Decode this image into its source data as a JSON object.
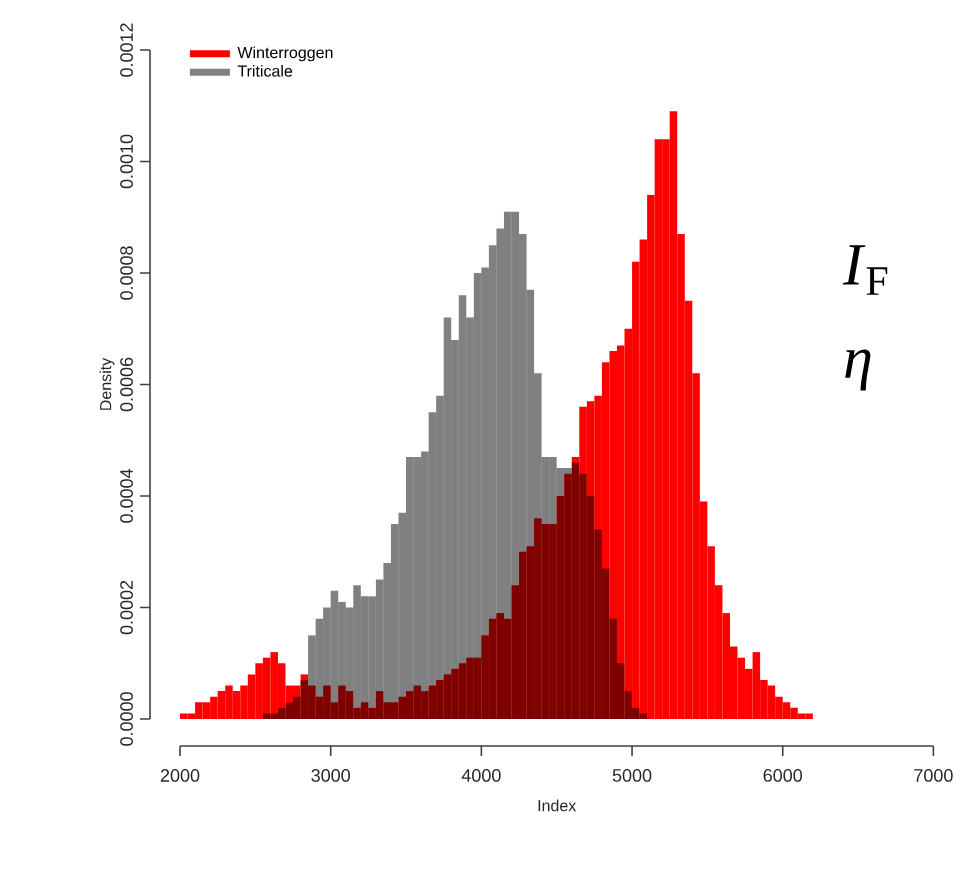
{
  "chart_data": {
    "type": "histogram",
    "xlabel": "Index",
    "ylabel": "Density",
    "bins": [
      2000,
      2050,
      2100,
      2150,
      2200,
      2250,
      2300,
      2350,
      2400,
      2450,
      2500,
      2550,
      2600,
      2650,
      2700,
      2750,
      2800,
      2850,
      2900,
      2950,
      3000,
      3050,
      3100,
      3150,
      3200,
      3250,
      3300,
      3350,
      3400,
      3450,
      3500,
      3550,
      3600,
      3650,
      3700,
      3750,
      3800,
      3850,
      3900,
      3950,
      4000,
      4050,
      4100,
      4150,
      4200,
      4250,
      4300,
      4350,
      4400,
      4450,
      4500,
      4550,
      4600,
      4650,
      4700,
      4750,
      4800,
      4850,
      4900,
      4950,
      5000,
      5050,
      5100,
      5150,
      5200,
      5250,
      5300,
      5350,
      5400,
      5450,
      5500,
      5550,
      5600,
      5650,
      5700,
      5750,
      5800,
      5850,
      5900,
      5950,
      6000,
      6050,
      6100,
      6150,
      6200
    ],
    "series": [
      {
        "name": "Winterroggen",
        "color": "#ff0000",
        "values": [
          1e-05,
          1e-05,
          3e-05,
          3e-05,
          4e-05,
          5e-05,
          6e-05,
          5e-05,
          6e-05,
          8e-05,
          0.0001,
          0.00011,
          0.00012,
          0.0001,
          6e-05,
          6e-05,
          8e-05,
          6e-05,
          4e-05,
          6e-05,
          3e-05,
          6e-05,
          5e-05,
          2e-05,
          3e-05,
          2e-05,
          5e-05,
          3e-05,
          3e-05,
          4e-05,
          5e-05,
          6e-05,
          5e-05,
          6e-05,
          7e-05,
          8e-05,
          9e-05,
          0.0001,
          0.00011,
          0.00011,
          0.00015,
          0.00018,
          0.00019,
          0.00018,
          0.00024,
          0.0003,
          0.00031,
          0.00036,
          0.00035,
          0.00035,
          0.0004,
          0.00044,
          0.00047,
          0.00056,
          0.00057,
          0.00058,
          0.00064,
          0.00066,
          0.00067,
          0.0007,
          0.00082,
          0.00086,
          0.00094,
          0.00104,
          0.00104,
          0.00109,
          0.00087,
          0.00075,
          0.00062,
          0.00039,
          0.00031,
          0.00024,
          0.00019,
          0.00013,
          0.00011,
          9e-05,
          0.00012,
          7e-05,
          6e-05,
          4e-05,
          3e-05,
          2e-05,
          1e-05,
          1e-05
        ]
      },
      {
        "name": "Triticale",
        "color": "#808080",
        "values": [
          0,
          0,
          0,
          0,
          0,
          0,
          0,
          0,
          0,
          0,
          0,
          1e-05,
          1e-05,
          2e-05,
          3e-05,
          4e-05,
          7e-05,
          0.00015,
          0.00018,
          0.0002,
          0.00023,
          0.00021,
          0.0002,
          0.00024,
          0.00022,
          0.00022,
          0.00025,
          0.00028,
          0.00035,
          0.00037,
          0.00047,
          0.00047,
          0.00048,
          0.00055,
          0.00058,
          0.00072,
          0.00068,
          0.00076,
          0.00072,
          0.0008,
          0.00081,
          0.00085,
          0.00088,
          0.00091,
          0.00091,
          0.00087,
          0.00077,
          0.00062,
          0.00047,
          0.00047,
          0.00045,
          0.00045,
          0.00046,
          0.00044,
          0.0004,
          0.00034,
          0.00027,
          0.00018,
          0.0001,
          5e-05,
          2e-05,
          1e-05,
          0,
          0,
          0,
          0,
          0,
          0,
          0,
          0,
          0,
          0,
          0,
          0,
          0,
          0,
          0,
          0,
          0,
          0,
          0,
          0,
          0,
          0
        ]
      }
    ],
    "xlim": [
      2000,
      7000
    ],
    "ylim": [
      0,
      0.0012
    ],
    "xticks": [
      2000,
      3000,
      4000,
      5000,
      6000,
      7000
    ],
    "yticks": [
      {
        "value": 0,
        "label": "0.0000"
      },
      {
        "value": 0.0002,
        "label": "0.0002"
      },
      {
        "value": 0.0004,
        "label": "0.0004"
      },
      {
        "value": 0.0006,
        "label": "0.0006"
      },
      {
        "value": 0.0008,
        "label": "0.0008"
      },
      {
        "value": 0.001,
        "label": "0.0010"
      },
      {
        "value": 0.0012,
        "label": "0.0012"
      }
    ],
    "legend": "top left",
    "grid": false,
    "annotations": [
      "*I*$_{F}$",
      "*η*"
    ]
  }
}
